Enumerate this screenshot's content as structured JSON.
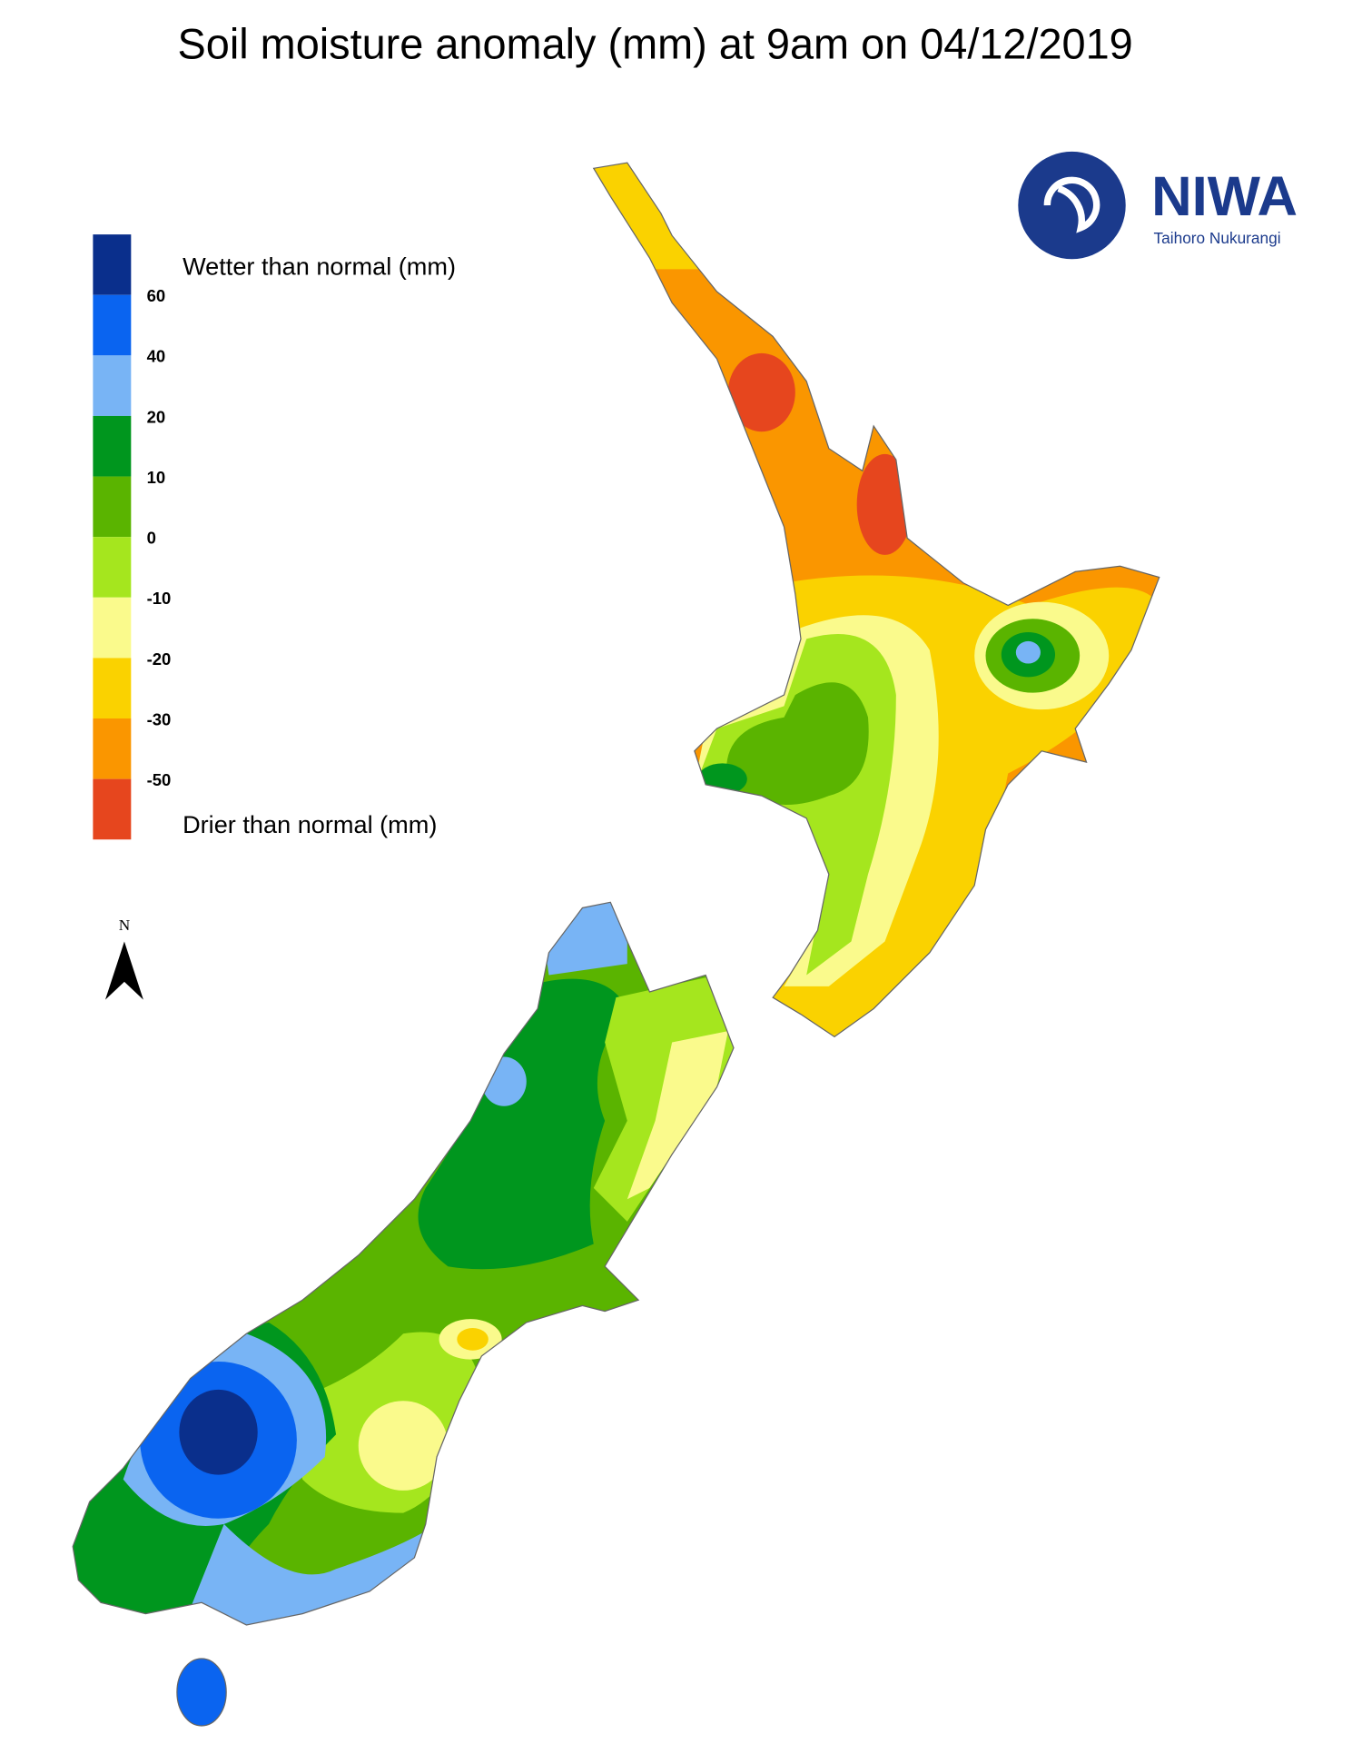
{
  "title": "Soil moisture anomaly (mm) at 9am on 04/12/2019",
  "legend": {
    "label_wetter": "Wetter than normal (mm)",
    "label_drier": "Drier than normal (mm)",
    "ticks": [
      60,
      40,
      20,
      10,
      0,
      -10,
      -20,
      -30,
      -50
    ],
    "colors": [
      "#0a2f8c",
      "#0a64f0",
      "#78b4f5",
      "#00961e",
      "#5ab400",
      "#a5e61e",
      "#fafa8c",
      "#fad200",
      "#fa9600",
      "#e6461e"
    ]
  },
  "logo": {
    "name": "NIWA",
    "subtitle": "Taihoro Nukurangi"
  },
  "north_label": "N"
}
